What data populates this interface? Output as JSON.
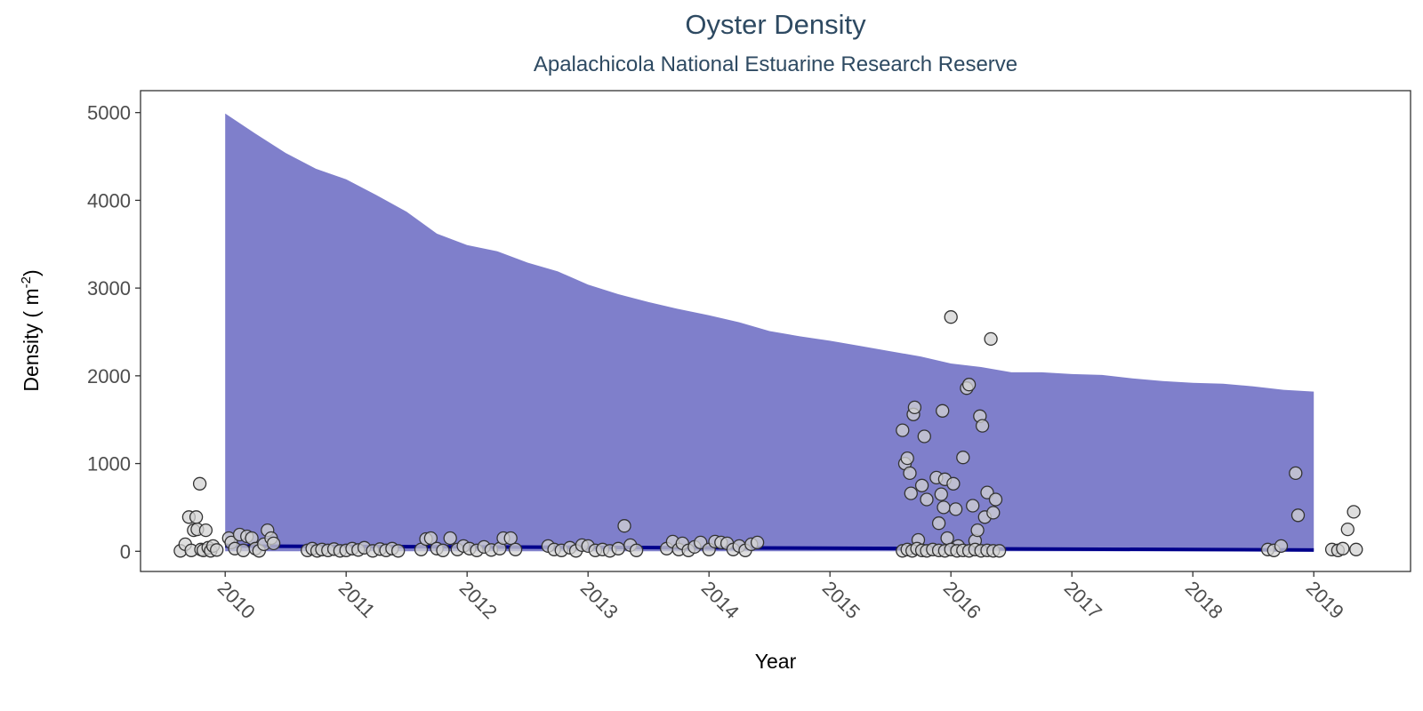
{
  "chart_data": {
    "type": "scatter",
    "title": "Oyster Density",
    "subtitle": "Apalachicola National Estuarine Research Reserve",
    "xlabel": "Year",
    "ylabel": "Density ( m",
    "ylabel_superscript": "-2",
    "ylabel_suffix": ")",
    "xlim": [
      2009.3,
      2019.8
    ],
    "ylim": [
      -230,
      5250
    ],
    "x_ticks": [
      2010,
      2011,
      2012,
      2013,
      2014,
      2015,
      2016,
      2017,
      2018,
      2019
    ],
    "x_tick_labels": [
      "2010",
      "2011",
      "2012",
      "2013",
      "2014",
      "2015",
      "2016",
      "2017",
      "2018",
      "2019"
    ],
    "y_ticks": [
      0,
      1000,
      2000,
      3000,
      4000,
      5000
    ],
    "y_tick_labels": [
      "0",
      "1000",
      "2000",
      "3000",
      "4000",
      "5000"
    ],
    "grid": false,
    "colors": {
      "ribbon": "#7f7fcb",
      "trend_line": "#00008b",
      "point_fill": "#d3d3d3",
      "point_stroke": "#333333",
      "title": "#2e4a62"
    },
    "series": [
      {
        "kind": "ribbon",
        "x": [
          2010.0,
          2010.25,
          2010.5,
          2010.75,
          2011.0,
          2011.25,
          2011.5,
          2011.75,
          2012.0,
          2012.25,
          2012.5,
          2012.75,
          2013.0,
          2013.25,
          2013.5,
          2013.75,
          2014.0,
          2014.25,
          2014.5,
          2014.75,
          2015.0,
          2015.25,
          2015.5,
          2015.75,
          2016.0,
          2016.25,
          2016.5,
          2016.75,
          2017.0,
          2017.25,
          2017.5,
          2017.75,
          2018.0,
          2018.25,
          2018.5,
          2018.75,
          2019.0
        ],
        "upper": [
          4990,
          4760,
          4540,
          4360,
          4240,
          4060,
          3870,
          3620,
          3490,
          3420,
          3290,
          3190,
          3040,
          2930,
          2840,
          2760,
          2690,
          2610,
          2510,
          2450,
          2400,
          2340,
          2280,
          2220,
          2140,
          2100,
          2040,
          2040,
          2020,
          2010,
          1970,
          1940,
          1920,
          1910,
          1880,
          1840,
          1820
        ],
        "lower": [
          0,
          0,
          0,
          0,
          0,
          0,
          0,
          0,
          0,
          0,
          0,
          0,
          0,
          0,
          0,
          0,
          0,
          0,
          0,
          0,
          0,
          0,
          0,
          0,
          0,
          0,
          0,
          0,
          0,
          0,
          0,
          0,
          0,
          0,
          0,
          0,
          0
        ]
      },
      {
        "kind": "trend",
        "x": [
          2010.0,
          2019.0
        ],
        "y": [
          60,
          15
        ]
      },
      {
        "kind": "points",
        "points": [
          [
            2009.63,
            5
          ],
          [
            2009.67,
            80
          ],
          [
            2009.7,
            390
          ],
          [
            2009.72,
            10
          ],
          [
            2009.74,
            240
          ],
          [
            2009.76,
            390
          ],
          [
            2009.77,
            250
          ],
          [
            2009.79,
            770
          ],
          [
            2009.8,
            20
          ],
          [
            2009.82,
            10
          ],
          [
            2009.84,
            240
          ],
          [
            2009.86,
            40
          ],
          [
            2009.88,
            5
          ],
          [
            2009.9,
            60
          ],
          [
            2009.93,
            15
          ],
          [
            2010.03,
            150
          ],
          [
            2010.05,
            100
          ],
          [
            2010.08,
            30
          ],
          [
            2010.12,
            190
          ],
          [
            2010.15,
            10
          ],
          [
            2010.18,
            170
          ],
          [
            2010.22,
            150
          ],
          [
            2010.25,
            30
          ],
          [
            2010.28,
            5
          ],
          [
            2010.32,
            80
          ],
          [
            2010.35,
            240
          ],
          [
            2010.38,
            150
          ],
          [
            2010.4,
            90
          ],
          [
            2010.68,
            10
          ],
          [
            2010.72,
            30
          ],
          [
            2010.76,
            5
          ],
          [
            2010.8,
            20
          ],
          [
            2010.85,
            10
          ],
          [
            2010.9,
            25
          ],
          [
            2010.95,
            5
          ],
          [
            2011.0,
            10
          ],
          [
            2011.05,
            30
          ],
          [
            2011.1,
            15
          ],
          [
            2011.15,
            40
          ],
          [
            2011.22,
            5
          ],
          [
            2011.28,
            25
          ],
          [
            2011.33,
            10
          ],
          [
            2011.38,
            30
          ],
          [
            2011.43,
            5
          ],
          [
            2011.62,
            20
          ],
          [
            2011.66,
            140
          ],
          [
            2011.7,
            150
          ],
          [
            2011.75,
            30
          ],
          [
            2011.8,
            10
          ],
          [
            2011.86,
            150
          ],
          [
            2011.92,
            20
          ],
          [
            2011.97,
            60
          ],
          [
            2012.02,
            30
          ],
          [
            2012.08,
            10
          ],
          [
            2012.14,
            50
          ],
          [
            2012.2,
            15
          ],
          [
            2012.27,
            30
          ],
          [
            2012.3,
            150
          ],
          [
            2012.36,
            150
          ],
          [
            2012.4,
            20
          ],
          [
            2012.67,
            60
          ],
          [
            2012.72,
            20
          ],
          [
            2012.78,
            10
          ],
          [
            2012.85,
            40
          ],
          [
            2012.9,
            5
          ],
          [
            2012.95,
            70
          ],
          [
            2013.0,
            60
          ],
          [
            2013.06,
            10
          ],
          [
            2013.12,
            20
          ],
          [
            2013.18,
            5
          ],
          [
            2013.25,
            30
          ],
          [
            2013.3,
            290
          ],
          [
            2013.35,
            70
          ],
          [
            2013.4,
            10
          ],
          [
            2013.65,
            30
          ],
          [
            2013.7,
            110
          ],
          [
            2013.75,
            20
          ],
          [
            2013.78,
            90
          ],
          [
            2013.83,
            10
          ],
          [
            2013.88,
            50
          ],
          [
            2013.93,
            100
          ],
          [
            2014.0,
            20
          ],
          [
            2014.05,
            110
          ],
          [
            2014.1,
            100
          ],
          [
            2014.15,
            90
          ],
          [
            2014.2,
            20
          ],
          [
            2014.25,
            60
          ],
          [
            2014.3,
            10
          ],
          [
            2014.35,
            80
          ],
          [
            2014.4,
            100
          ],
          [
            2015.6,
            1380
          ],
          [
            2015.62,
            1000
          ],
          [
            2015.64,
            1060
          ],
          [
            2015.66,
            890
          ],
          [
            2015.67,
            660
          ],
          [
            2015.69,
            1560
          ],
          [
            2015.7,
            1640
          ],
          [
            2015.73,
            130
          ],
          [
            2015.76,
            750
          ],
          [
            2015.78,
            1310
          ],
          [
            2015.8,
            590
          ],
          [
            2015.88,
            840
          ],
          [
            2015.9,
            320
          ],
          [
            2015.92,
            650
          ],
          [
            2015.93,
            1600
          ],
          [
            2015.94,
            500
          ],
          [
            2015.95,
            820
          ],
          [
            2015.97,
            150
          ],
          [
            2016.0,
            2670
          ],
          [
            2016.02,
            770
          ],
          [
            2016.04,
            480
          ],
          [
            2016.06,
            60
          ],
          [
            2016.1,
            1070
          ],
          [
            2016.13,
            1860
          ],
          [
            2016.15,
            1900
          ],
          [
            2016.18,
            520
          ],
          [
            2016.2,
            120
          ],
          [
            2016.22,
            240
          ],
          [
            2016.24,
            1540
          ],
          [
            2016.26,
            1430
          ],
          [
            2016.28,
            390
          ],
          [
            2016.3,
            670
          ],
          [
            2016.33,
            2420
          ],
          [
            2016.35,
            440
          ],
          [
            2016.37,
            590
          ],
          [
            2015.6,
            5
          ],
          [
            2015.64,
            20
          ],
          [
            2015.68,
            5
          ],
          [
            2015.72,
            30
          ],
          [
            2015.76,
            10
          ],
          [
            2015.8,
            5
          ],
          [
            2015.85,
            20
          ],
          [
            2015.9,
            10
          ],
          [
            2015.95,
            5
          ],
          [
            2016.0,
            20
          ],
          [
            2016.05,
            5
          ],
          [
            2016.1,
            10
          ],
          [
            2016.15,
            5
          ],
          [
            2016.2,
            20
          ],
          [
            2016.25,
            5
          ],
          [
            2016.3,
            10
          ],
          [
            2016.35,
            5
          ],
          [
            2016.4,
            5
          ],
          [
            2018.62,
            20
          ],
          [
            2018.67,
            10
          ],
          [
            2018.73,
            60
          ],
          [
            2018.85,
            890
          ],
          [
            2018.87,
            410
          ],
          [
            2019.15,
            20
          ],
          [
            2019.2,
            10
          ],
          [
            2019.24,
            30
          ],
          [
            2019.28,
            250
          ],
          [
            2019.33,
            450
          ],
          [
            2019.35,
            20
          ]
        ]
      }
    ]
  }
}
